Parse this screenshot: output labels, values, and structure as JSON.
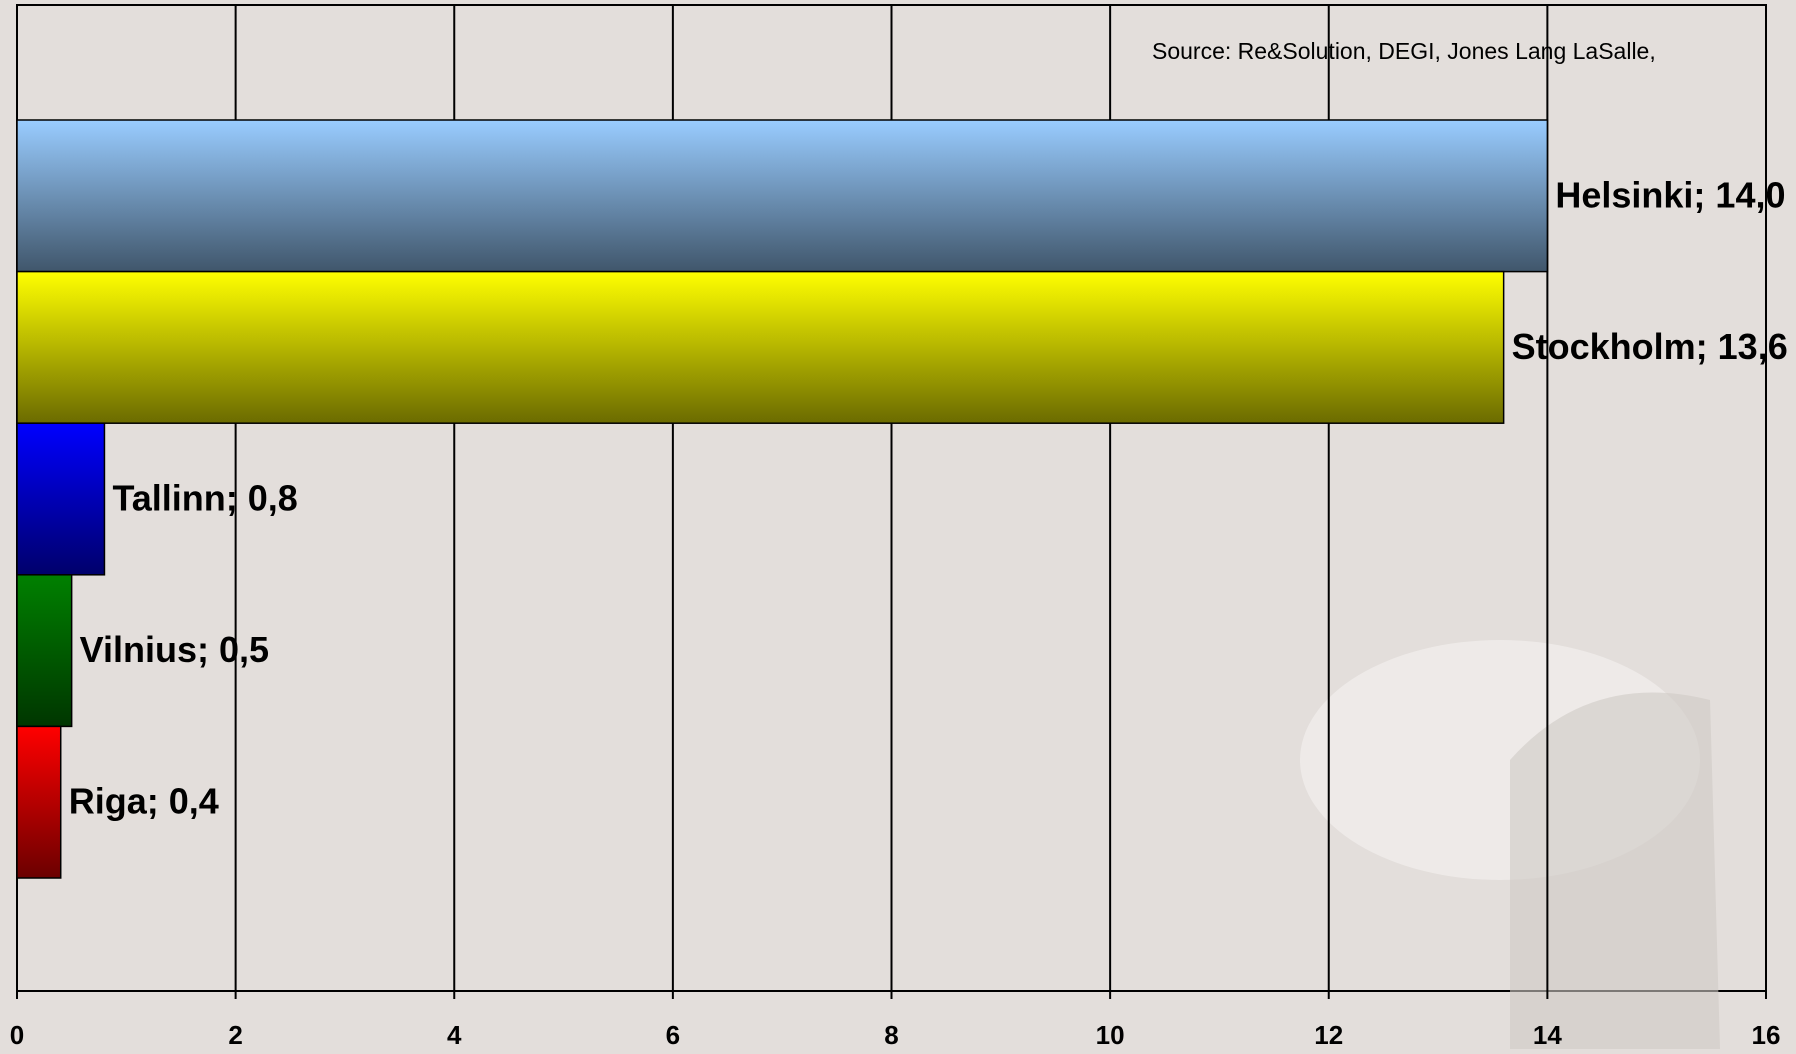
{
  "chart_data": {
    "type": "barh",
    "annotation": "Source: Re&Solution, DEGI, Jones Lang LaSalle,",
    "values": [
      14.0,
      13.6,
      0.8,
      0.5,
      0.4
    ],
    "value_labels": [
      "Helsinki; 14,0",
      "Stockholm; 13,6",
      "Tallinn; 0,8",
      "Vilnius; 0,5",
      "Riga; 0,4"
    ],
    "colors": [
      "#99ccff",
      "#ffff00",
      "#0000ff",
      "#008000",
      "#ff0000"
    ],
    "xlim": [
      0,
      16
    ],
    "xticks": [
      0,
      2,
      4,
      6,
      8,
      10,
      12,
      14,
      16
    ],
    "grid": true
  }
}
